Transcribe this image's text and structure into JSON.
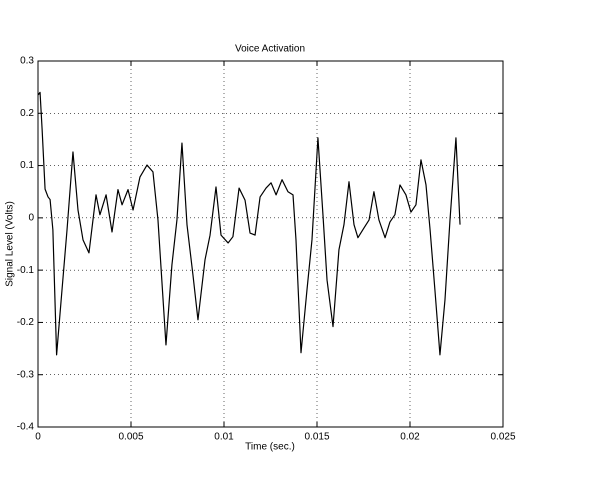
{
  "chart_data": {
    "type": "line",
    "title": "Voice Activation",
    "x_label": "Time (sec.)",
    "y_label": "Signal Level (Volts)",
    "color": "#000000",
    "grid": true,
    "xlim": [
      0,
      0.025
    ],
    "xticks": [
      0,
      0.005,
      0.01,
      0.015,
      0.02,
      0.025
    ],
    "ylim": [
      -0.4,
      0.3
    ],
    "yticks": [
      -0.4,
      -0.3,
      -0.2,
      -0.1,
      0,
      0.1,
      0.2,
      0.3
    ],
    "x": [
      0,
      0.00011,
      0.00022,
      0.00038,
      0.00054,
      0.00065,
      0.0008,
      0.001,
      0.00129,
      0.00156,
      0.00188,
      0.00215,
      0.00242,
      0.00274,
      0.00312,
      0.00333,
      0.00366,
      0.00398,
      0.0043,
      0.00452,
      0.00484,
      0.00511,
      0.00548,
      0.00586,
      0.00618,
      0.00645,
      0.00688,
      0.0072,
      0.00747,
      0.00774,
      0.00801,
      0.00833,
      0.0086,
      0.00898,
      0.00925,
      0.00957,
      0.00984,
      0.01022,
      0.01048,
      0.01081,
      0.01113,
      0.0114,
      0.01167,
      0.01194,
      0.01226,
      0.01253,
      0.0128,
      0.01312,
      0.01344,
      0.01371,
      0.01387,
      0.01414,
      0.01446,
      0.01473,
      0.01505,
      0.01532,
      0.01554,
      0.01586,
      0.01618,
      0.01645,
      0.01672,
      0.01699,
      0.0172,
      0.01753,
      0.0178,
      0.01806,
      0.01833,
      0.01866,
      0.01892,
      0.01919,
      0.01946,
      0.01978,
      0.02005,
      0.02032,
      0.02059,
      0.02086,
      0.02108,
      0.02134,
      0.02161,
      0.02188,
      0.02215,
      0.02247,
      0.02269
    ],
    "values": [
      0.235,
      0.24,
      0.17,
      0.055,
      0.04,
      0.035,
      -0.023,
      -0.262,
      -0.138,
      -0.023,
      0.126,
      0.015,
      -0.042,
      -0.067,
      0.044,
      0.006,
      0.044,
      -0.027,
      0.054,
      0.025,
      0.054,
      0.015,
      0.078,
      0.101,
      0.088,
      -0.004,
      -0.243,
      -0.09,
      -0.004,
      0.143,
      -0.013,
      -0.109,
      -0.195,
      -0.08,
      -0.033,
      0.059,
      -0.033,
      -0.048,
      -0.036,
      0.057,
      0.034,
      -0.029,
      -0.033,
      0.04,
      0.057,
      0.067,
      0.044,
      0.073,
      0.05,
      0.044,
      -0.042,
      -0.258,
      -0.138,
      -0.042,
      0.153,
      0.006,
      -0.119,
      -0.208,
      -0.061,
      -0.013,
      0.069,
      -0.013,
      -0.038,
      -0.019,
      -0.004,
      0.05,
      -0.004,
      -0.038,
      -0.008,
      0.006,
      0.063,
      0.044,
      0.011,
      0.025,
      0.111,
      0.063,
      -0.023,
      -0.138,
      -0.262,
      -0.157,
      -0.004,
      0.153,
      -0.013
    ]
  }
}
